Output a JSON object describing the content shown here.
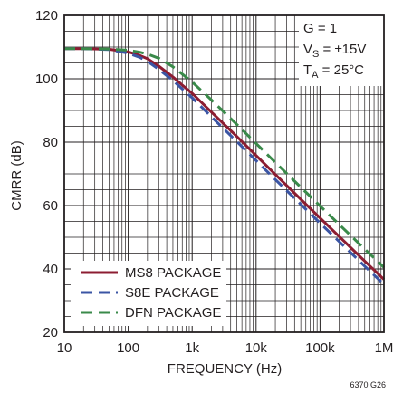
{
  "chart_data": {
    "type": "line",
    "xlabel": "FREQUENCY (Hz)",
    "ylabel": "CMRR (dB)",
    "xscale": "log",
    "xlim": [
      10,
      1000000
    ],
    "ylim": [
      20,
      120
    ],
    "grid": true,
    "x_ticks": [
      {
        "value": 10,
        "label": "10"
      },
      {
        "value": 100,
        "label": "100"
      },
      {
        "value": 1000,
        "label": "1k"
      },
      {
        "value": 10000,
        "label": "10k"
      },
      {
        "value": 100000,
        "label": "100k"
      },
      {
        "value": 1000000,
        "label": "1M"
      }
    ],
    "y_ticks": [
      20,
      40,
      60,
      80,
      100,
      120
    ],
    "conditions": {
      "gain": "G = 1",
      "vs_main": "V",
      "vs_sub": "S",
      "vs_value": " = ±15V",
      "ta_main": "T",
      "ta_sub": "A",
      "ta_value": " = 25°C"
    },
    "legend_position": "bottom-left",
    "figure_code": "6370 G26",
    "series": [
      {
        "name": "MS8 PACKAGE",
        "color": "#8c1d32",
        "dash": "solid",
        "x": [
          10,
          20,
          50,
          100,
          150,
          200,
          300,
          500,
          700,
          1000,
          2000,
          5000,
          10000,
          20000,
          50000,
          100000,
          200000,
          500000,
          1000000
        ],
        "y": [
          109.5,
          109.5,
          109.3,
          108.5,
          107.4,
          106.3,
          104.0,
          100.6,
          98.0,
          95.4,
          89.5,
          81.8,
          75.8,
          69.8,
          62.0,
          56.1,
          50.2,
          42.5,
          36.7
        ]
      },
      {
        "name": "S8E PACKAGE",
        "color": "#3b55a4",
        "dash": "dash",
        "x": [
          10,
          20,
          50,
          100,
          150,
          200,
          300,
          500,
          700,
          1000,
          2000,
          5000,
          10000,
          20000,
          50000,
          100000,
          200000,
          500000,
          1000000
        ],
        "y": [
          109.5,
          109.5,
          109.2,
          108.1,
          106.8,
          105.5,
          103.0,
          99.5,
          96.8,
          94.0,
          88.0,
          80.2,
          74.2,
          68.2,
          60.4,
          54.5,
          48.6,
          40.9,
          35.1
        ]
      },
      {
        "name": "DFN PACKAGE",
        "color": "#3a8a4a",
        "dash": "dash",
        "x": [
          10,
          20,
          50,
          100,
          150,
          200,
          300,
          500,
          700,
          1000,
          2000,
          5000,
          10000,
          20000,
          50000,
          100000,
          200000,
          500000,
          1000000
        ],
        "y": [
          109.5,
          109.5,
          109.4,
          109.0,
          108.4,
          107.8,
          106.5,
          103.8,
          101.5,
          99.0,
          93.3,
          85.6,
          79.6,
          73.6,
          65.8,
          59.9,
          54.0,
          46.3,
          40.5
        ]
      }
    ]
  }
}
